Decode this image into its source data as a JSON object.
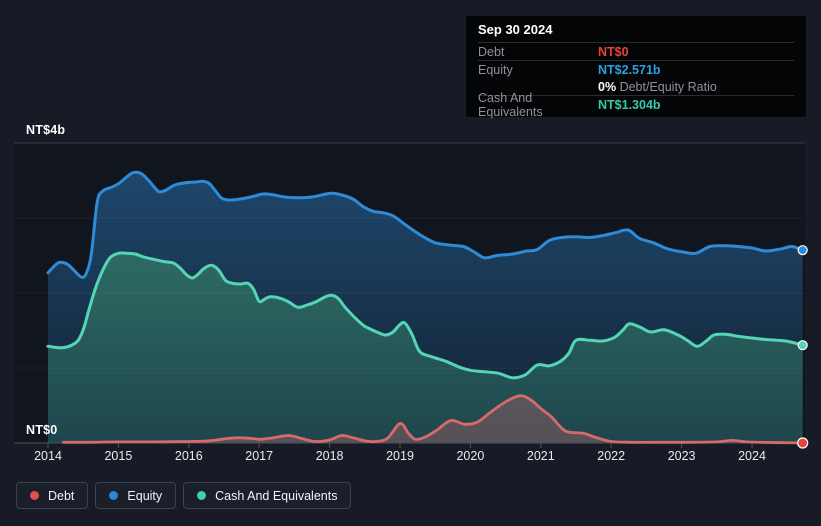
{
  "tooltip": {
    "date": "Sep 30 2024",
    "debt_label": "Debt",
    "debt_value": "NT$0",
    "equity_label": "Equity",
    "equity_value": "NT$2.571b",
    "ratio_value": "0%",
    "ratio_label": "Debt/Equity Ratio",
    "cash_label": "Cash And Equivalents",
    "cash_value": "NT$1.304b"
  },
  "colors": {
    "debt": "#e8423a",
    "equity": "#2e9fe0",
    "cash": "#38c9ab",
    "debt_line": "#d96a6a",
    "equity_line": "#2d8bd8",
    "cash_line": "#54d6b6"
  },
  "legend": [
    {
      "key": "debt",
      "label": "Debt",
      "color": "#e14f4f"
    },
    {
      "key": "equity",
      "label": "Equity",
      "color": "#2a87d8"
    },
    {
      "key": "cash",
      "label": "Cash And Equivalents",
      "color": "#3fd0b2"
    }
  ],
  "chart_data": {
    "type": "area",
    "title": "Debt to Equity History",
    "unit": "NT$ billions",
    "x_range": [
      2014,
      2024.72
    ],
    "ylim": [
      0,
      4
    ],
    "grid": true,
    "legend_position": "bottom",
    "y_axis": {
      "top_label": "NT$4b",
      "bottom_label": "NT$0"
    },
    "x_ticks": [
      "2014",
      "2015",
      "2016",
      "2017",
      "2018",
      "2019",
      "2020",
      "2021",
      "2022",
      "2023",
      "2024"
    ],
    "gridline_values": [
      0,
      1,
      2,
      3,
      4
    ],
    "series": [
      {
        "name": "Equity",
        "key": "equity",
        "end_value": 2.571,
        "points": [
          [
            2014.0,
            2.27
          ],
          [
            2014.14,
            2.4
          ],
          [
            2014.24,
            2.4
          ],
          [
            2014.32,
            2.35
          ],
          [
            2014.48,
            2.21
          ],
          [
            2014.56,
            2.3
          ],
          [
            2014.62,
            2.55
          ],
          [
            2014.7,
            3.22
          ],
          [
            2014.78,
            3.36
          ],
          [
            2014.9,
            3.41
          ],
          [
            2015.02,
            3.47
          ],
          [
            2015.16,
            3.58
          ],
          [
            2015.24,
            3.61
          ],
          [
            2015.33,
            3.59
          ],
          [
            2015.43,
            3.5
          ],
          [
            2015.52,
            3.4
          ],
          [
            2015.58,
            3.35
          ],
          [
            2015.67,
            3.37
          ],
          [
            2015.8,
            3.44
          ],
          [
            2015.95,
            3.47
          ],
          [
            2016.1,
            3.48
          ],
          [
            2016.2,
            3.49
          ],
          [
            2016.29,
            3.46
          ],
          [
            2016.38,
            3.36
          ],
          [
            2016.46,
            3.27
          ],
          [
            2016.56,
            3.24
          ],
          [
            2016.7,
            3.25
          ],
          [
            2016.88,
            3.28
          ],
          [
            2017.05,
            3.32
          ],
          [
            2017.2,
            3.31
          ],
          [
            2017.36,
            3.28
          ],
          [
            2017.55,
            3.27
          ],
          [
            2017.75,
            3.28
          ],
          [
            2017.9,
            3.31
          ],
          [
            2018.04,
            3.33
          ],
          [
            2018.2,
            3.3
          ],
          [
            2018.34,
            3.25
          ],
          [
            2018.48,
            3.15
          ],
          [
            2018.62,
            3.09
          ],
          [
            2018.76,
            3.07
          ],
          [
            2018.9,
            3.03
          ],
          [
            2019.05,
            2.93
          ],
          [
            2019.2,
            2.83
          ],
          [
            2019.35,
            2.74
          ],
          [
            2019.5,
            2.67
          ],
          [
            2019.7,
            2.64
          ],
          [
            2019.9,
            2.62
          ],
          [
            2020.05,
            2.55
          ],
          [
            2020.2,
            2.47
          ],
          [
            2020.38,
            2.5
          ],
          [
            2020.6,
            2.52
          ],
          [
            2020.8,
            2.56
          ],
          [
            2020.95,
            2.58
          ],
          [
            2021.12,
            2.7
          ],
          [
            2021.3,
            2.74
          ],
          [
            2021.5,
            2.75
          ],
          [
            2021.7,
            2.74
          ],
          [
            2021.9,
            2.77
          ],
          [
            2022.08,
            2.81
          ],
          [
            2022.24,
            2.84
          ],
          [
            2022.4,
            2.73
          ],
          [
            2022.6,
            2.67
          ],
          [
            2022.8,
            2.59
          ],
          [
            2023.0,
            2.55
          ],
          [
            2023.2,
            2.53
          ],
          [
            2023.4,
            2.62
          ],
          [
            2023.6,
            2.63
          ],
          [
            2023.8,
            2.62
          ],
          [
            2024.0,
            2.6
          ],
          [
            2024.2,
            2.56
          ],
          [
            2024.42,
            2.59
          ],
          [
            2024.57,
            2.62
          ],
          [
            2024.72,
            2.571
          ]
        ]
      },
      {
        "name": "Cash And Equivalents",
        "key": "cash",
        "end_value": 1.304,
        "points": [
          [
            2014.0,
            1.29
          ],
          [
            2014.17,
            1.27
          ],
          [
            2014.3,
            1.29
          ],
          [
            2014.42,
            1.36
          ],
          [
            2014.5,
            1.51
          ],
          [
            2014.58,
            1.77
          ],
          [
            2014.68,
            2.08
          ],
          [
            2014.78,
            2.31
          ],
          [
            2014.88,
            2.47
          ],
          [
            2015.0,
            2.53
          ],
          [
            2015.12,
            2.53
          ],
          [
            2015.24,
            2.52
          ],
          [
            2015.36,
            2.48
          ],
          [
            2015.5,
            2.45
          ],
          [
            2015.64,
            2.42
          ],
          [
            2015.78,
            2.4
          ],
          [
            2015.88,
            2.33
          ],
          [
            2015.97,
            2.24
          ],
          [
            2016.05,
            2.2
          ],
          [
            2016.13,
            2.25
          ],
          [
            2016.22,
            2.33
          ],
          [
            2016.32,
            2.37
          ],
          [
            2016.42,
            2.31
          ],
          [
            2016.52,
            2.17
          ],
          [
            2016.62,
            2.13
          ],
          [
            2016.74,
            2.12
          ],
          [
            2016.84,
            2.13
          ],
          [
            2016.92,
            2.05
          ],
          [
            2017.0,
            1.89
          ],
          [
            2017.08,
            1.92
          ],
          [
            2017.16,
            1.95
          ],
          [
            2017.3,
            1.93
          ],
          [
            2017.42,
            1.88
          ],
          [
            2017.55,
            1.81
          ],
          [
            2017.68,
            1.84
          ],
          [
            2017.8,
            1.88
          ],
          [
            2017.92,
            1.94
          ],
          [
            2018.02,
            1.97
          ],
          [
            2018.12,
            1.93
          ],
          [
            2018.22,
            1.81
          ],
          [
            2018.35,
            1.68
          ],
          [
            2018.48,
            1.57
          ],
          [
            2018.6,
            1.51
          ],
          [
            2018.72,
            1.46
          ],
          [
            2018.8,
            1.44
          ],
          [
            2018.9,
            1.48
          ],
          [
            2019.0,
            1.58
          ],
          [
            2019.07,
            1.6
          ],
          [
            2019.17,
            1.45
          ],
          [
            2019.28,
            1.22
          ],
          [
            2019.45,
            1.15
          ],
          [
            2019.65,
            1.09
          ],
          [
            2019.85,
            1.01
          ],
          [
            2020.0,
            0.97
          ],
          [
            2020.2,
            0.95
          ],
          [
            2020.4,
            0.93
          ],
          [
            2020.6,
            0.87
          ],
          [
            2020.78,
            0.91
          ],
          [
            2020.95,
            1.04
          ],
          [
            2021.12,
            1.03
          ],
          [
            2021.28,
            1.09
          ],
          [
            2021.4,
            1.2
          ],
          [
            2021.5,
            1.37
          ],
          [
            2021.7,
            1.37
          ],
          [
            2021.88,
            1.36
          ],
          [
            2022.05,
            1.41
          ],
          [
            2022.17,
            1.51
          ],
          [
            2022.26,
            1.59
          ],
          [
            2022.42,
            1.54
          ],
          [
            2022.56,
            1.48
          ],
          [
            2022.75,
            1.51
          ],
          [
            2022.95,
            1.44
          ],
          [
            2023.08,
            1.37
          ],
          [
            2023.22,
            1.29
          ],
          [
            2023.35,
            1.36
          ],
          [
            2023.46,
            1.44
          ],
          [
            2023.62,
            1.45
          ],
          [
            2023.82,
            1.42
          ],
          [
            2024.0,
            1.4
          ],
          [
            2024.2,
            1.38
          ],
          [
            2024.48,
            1.36
          ],
          [
            2024.72,
            1.304
          ]
        ]
      },
      {
        "name": "Debt",
        "key": "debt",
        "end_value": 0,
        "points": [
          [
            2014.22,
            0.01
          ],
          [
            2014.6,
            0.01
          ],
          [
            2015.0,
            0.015
          ],
          [
            2015.5,
            0.015
          ],
          [
            2016.0,
            0.02
          ],
          [
            2016.3,
            0.03
          ],
          [
            2016.55,
            0.06
          ],
          [
            2016.73,
            0.07
          ],
          [
            2016.9,
            0.06
          ],
          [
            2017.02,
            0.05
          ],
          [
            2017.2,
            0.07
          ],
          [
            2017.42,
            0.1
          ],
          [
            2017.6,
            0.06
          ],
          [
            2017.8,
            0.02
          ],
          [
            2018.0,
            0.04
          ],
          [
            2018.17,
            0.1
          ],
          [
            2018.33,
            0.07
          ],
          [
            2018.5,
            0.03
          ],
          [
            2018.65,
            0.02
          ],
          [
            2018.82,
            0.06
          ],
          [
            2019.0,
            0.26
          ],
          [
            2019.12,
            0.13
          ],
          [
            2019.22,
            0.05
          ],
          [
            2019.36,
            0.08
          ],
          [
            2019.52,
            0.17
          ],
          [
            2019.72,
            0.3
          ],
          [
            2019.92,
            0.25
          ],
          [
            2020.1,
            0.28
          ],
          [
            2020.3,
            0.42
          ],
          [
            2020.5,
            0.55
          ],
          [
            2020.7,
            0.63
          ],
          [
            2020.85,
            0.58
          ],
          [
            2021.0,
            0.46
          ],
          [
            2021.15,
            0.35
          ],
          [
            2021.35,
            0.16
          ],
          [
            2021.6,
            0.13
          ],
          [
            2021.8,
            0.07
          ],
          [
            2022.0,
            0.02
          ],
          [
            2022.3,
            0.01
          ],
          [
            2022.7,
            0.01
          ],
          [
            2023.1,
            0.01
          ],
          [
            2023.5,
            0.015
          ],
          [
            2023.72,
            0.035
          ],
          [
            2023.92,
            0.015
          ],
          [
            2024.15,
            0.008
          ],
          [
            2024.45,
            0.004
          ],
          [
            2024.72,
            0.0
          ]
        ]
      }
    ]
  }
}
